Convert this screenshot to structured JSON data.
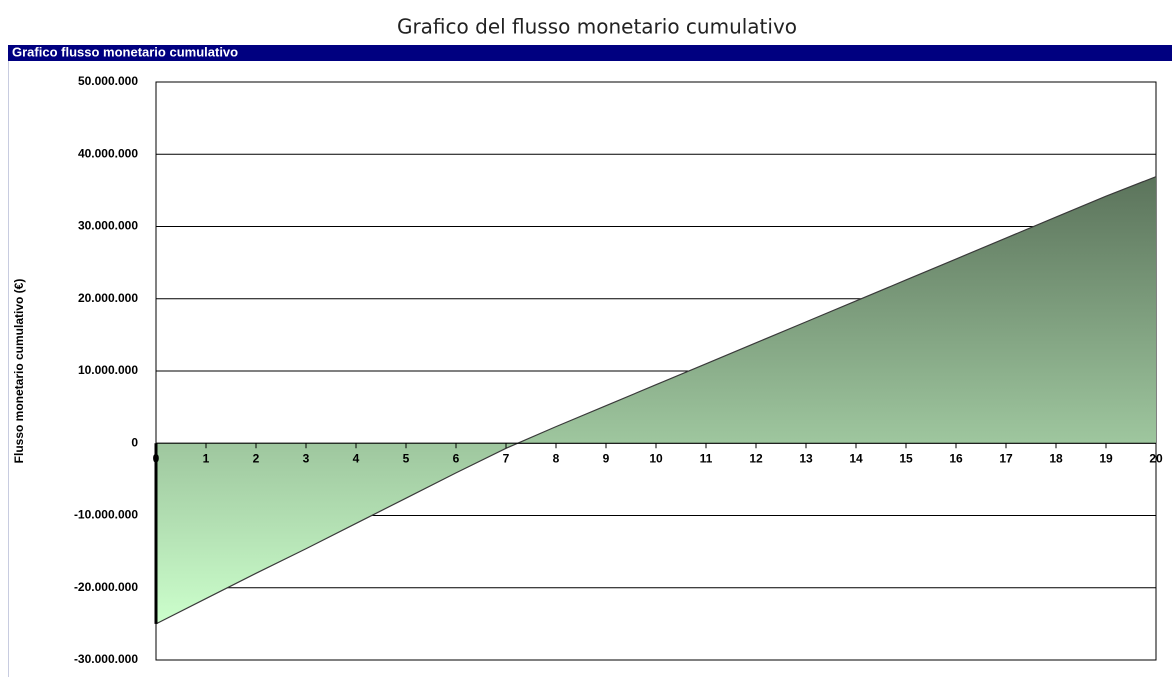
{
  "header": {
    "title": "Grafico del flusso monetario cumulativo"
  },
  "chart_data": {
    "type": "area",
    "title": "Grafico flusso monetario cumulativo",
    "y_label": "Flusso monetario cumulativo (€)",
    "x": [
      0,
      1,
      2,
      3,
      4,
      5,
      6,
      7,
      8,
      9,
      10,
      11,
      12,
      13,
      14,
      15,
      16,
      17,
      18,
      19,
      20
    ],
    "series": [
      {
        "color": "#3a3a3a",
        "values": [
          -25000000,
          -21500000,
          -18000000,
          -14600000,
          -11100000,
          -7600000,
          -4100000,
          -700000,
          2300000,
          5200000,
          8100000,
          11000000,
          13900000,
          16800000,
          19700000,
          22600000,
          25500000,
          28400000,
          31300000,
          34200000,
          36900000
        ]
      }
    ],
    "xlim": [
      0,
      20
    ],
    "xticks": [
      0,
      1,
      2,
      3,
      4,
      5,
      6,
      7,
      8,
      9,
      10,
      11,
      12,
      13,
      14,
      15,
      16,
      17,
      18,
      19,
      20
    ],
    "ylim": [
      -30000000,
      50000000
    ],
    "yticks": [
      {
        "value": -30000000,
        "label": "-30.000.000"
      },
      {
        "value": -20000000,
        "label": "-20.000.000"
      },
      {
        "value": -10000000,
        "label": "-10.000.000"
      },
      0,
      {
        "value": 10000000,
        "label": "10.000.000"
      },
      {
        "value": 20000000,
        "label": "20.000.000"
      },
      {
        "value": 30000000,
        "label": "30.000.000"
      },
      {
        "value": 40000000,
        "label": "40.000.000"
      },
      {
        "value": 50000000,
        "label": "50.000.000"
      }
    ],
    "grid": true
  }
}
